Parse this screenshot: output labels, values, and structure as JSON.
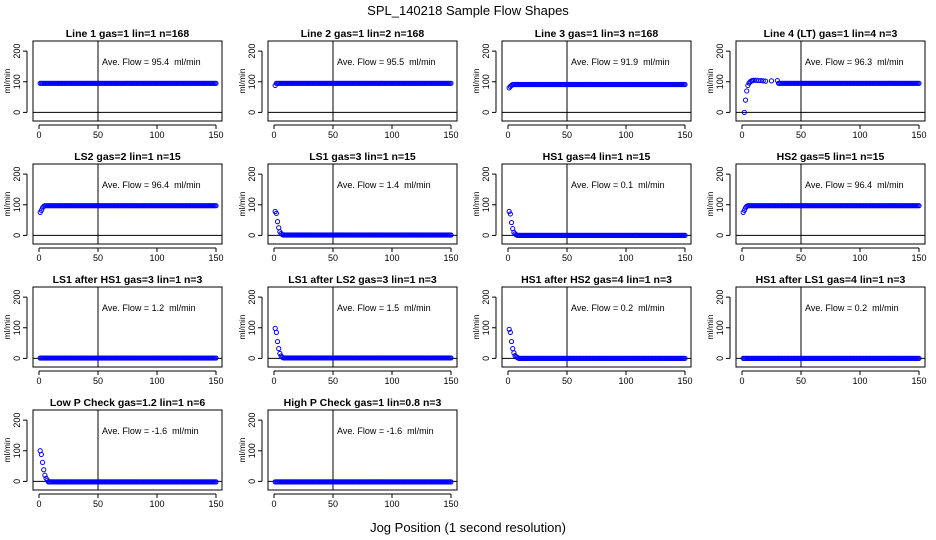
{
  "title": "SPL_140218  Sample Flow Shapes",
  "xlabel": "Jog Position (1 second resolution)",
  "colors": {
    "points": "#0000ff",
    "axes": "#000000",
    "background": "#ffffff"
  },
  "chart_data": [
    {
      "type": "scatter",
      "title": "Line 1 gas=1 lin=1 n=168",
      "ylabel": "ml/min",
      "flow_text": "Ave. Flow = 95.4  ml/min",
      "shape": "flat",
      "plateau": 95,
      "xlim": [
        0,
        150
      ],
      "ylim": [
        -15,
        220
      ],
      "xticks": [
        0,
        50,
        100,
        150
      ],
      "yticks": [
        0,
        100,
        200
      ],
      "vline_x": 50,
      "hline_y": 0,
      "points": []
    },
    {
      "type": "scatter",
      "title": "Line 2 gas=1 lin=2 n=168",
      "ylabel": "ml/min",
      "flow_text": "Ave. Flow = 95.5  ml/min",
      "shape": "flat",
      "plateau": 95,
      "xlim": [
        0,
        150
      ],
      "ylim": [
        -15,
        220
      ],
      "xticks": [
        0,
        50,
        100,
        150
      ],
      "yticks": [
        0,
        100,
        200
      ],
      "vline_x": 50,
      "hline_y": 0,
      "points": [
        [
          1,
          88
        ]
      ]
    },
    {
      "type": "scatter",
      "title": "Line 3 gas=1 lin=3 n=168",
      "ylabel": "ml/min",
      "flow_text": "Ave. Flow = 91.9  ml/min",
      "shape": "flat",
      "plateau": 91,
      "xlim": [
        0,
        150
      ],
      "ylim": [
        -15,
        220
      ],
      "xticks": [
        0,
        50,
        100,
        150
      ],
      "yticks": [
        0,
        100,
        200
      ],
      "vline_x": 50,
      "hline_y": 0,
      "points": [
        [
          1,
          80
        ],
        [
          2,
          85
        ],
        [
          3,
          88
        ]
      ]
    },
    {
      "type": "scatter",
      "title": "Line 4 (LT) gas=1 lin=4 n=3",
      "ylabel": "ml/min",
      "flow_text": "Ave. Flow = 96.3  ml/min",
      "shape": "flat",
      "plateau": 95,
      "xlim": [
        0,
        150
      ],
      "ylim": [
        -15,
        220
      ],
      "xticks": [
        0,
        50,
        100,
        150
      ],
      "yticks": [
        0,
        100,
        200
      ],
      "vline_x": 50,
      "hline_y": 0,
      "points": [
        [
          2,
          0
        ],
        [
          3,
          40
        ],
        [
          4,
          70
        ],
        [
          5,
          88
        ],
        [
          6,
          96
        ],
        [
          7,
          100
        ],
        [
          8,
          103
        ],
        [
          9,
          104
        ],
        [
          10,
          105
        ],
        [
          12,
          105
        ],
        [
          14,
          104
        ],
        [
          16,
          104
        ],
        [
          18,
          103
        ],
        [
          20,
          102
        ],
        [
          25,
          103
        ],
        [
          30,
          104
        ]
      ]
    },
    {
      "type": "scatter",
      "title": "LS2 gas=2 lin=1 n=15",
      "ylabel": "ml/min",
      "flow_text": "Ave. Flow = 96.4  ml/min",
      "shape": "flat",
      "plateau": 97,
      "xlim": [
        0,
        150
      ],
      "ylim": [
        -15,
        220
      ],
      "xticks": [
        0,
        50,
        100,
        150
      ],
      "yticks": [
        0,
        100,
        200
      ],
      "vline_x": 50,
      "hline_y": 0,
      "points": [
        [
          1,
          75
        ],
        [
          2,
          82
        ],
        [
          3,
          90
        ],
        [
          4,
          95
        ]
      ]
    },
    {
      "type": "scatter",
      "title": "LS1 gas=3 lin=1 n=15",
      "ylabel": "ml/min",
      "flow_text": "Ave. Flow = 1.4  ml/min",
      "shape": "decay",
      "plateau": 1.4,
      "xlim": [
        0,
        150
      ],
      "ylim": [
        -15,
        220
      ],
      "xticks": [
        0,
        50,
        100,
        150
      ],
      "yticks": [
        0,
        100,
        200
      ],
      "vline_x": 50,
      "hline_y": 0,
      "points": [
        [
          1,
          78
        ],
        [
          2,
          72
        ],
        [
          3,
          45
        ],
        [
          4,
          25
        ],
        [
          5,
          12
        ],
        [
          6,
          6
        ],
        [
          7,
          3
        ]
      ]
    },
    {
      "type": "scatter",
      "title": "HS1 gas=4 lin=1 n=15",
      "ylabel": "ml/min",
      "flow_text": "Ave. Flow = 0.1  ml/min",
      "shape": "decay",
      "plateau": 0.1,
      "xlim": [
        0,
        150
      ],
      "ylim": [
        -15,
        220
      ],
      "xticks": [
        0,
        50,
        100,
        150
      ],
      "yticks": [
        0,
        100,
        200
      ],
      "vline_x": 50,
      "hline_y": 0,
      "points": [
        [
          1,
          78
        ],
        [
          2,
          70
        ],
        [
          3,
          42
        ],
        [
          4,
          22
        ],
        [
          5,
          10
        ],
        [
          6,
          5
        ],
        [
          7,
          2
        ]
      ]
    },
    {
      "type": "scatter",
      "title": "HS2 gas=5 lin=1 n=15",
      "ylabel": "ml/min",
      "flow_text": "Ave. Flow = 96.4  ml/min",
      "shape": "flat",
      "plateau": 97,
      "xlim": [
        0,
        150
      ],
      "ylim": [
        -15,
        220
      ],
      "xticks": [
        0,
        50,
        100,
        150
      ],
      "yticks": [
        0,
        100,
        200
      ],
      "vline_x": 50,
      "hline_y": 0,
      "points": [
        [
          1,
          75
        ],
        [
          2,
          82
        ],
        [
          3,
          90
        ],
        [
          4,
          95
        ]
      ]
    },
    {
      "type": "scatter",
      "title": "LS1 after HS1 gas=3 lin=1 n=3",
      "ylabel": "ml/min",
      "flow_text": "Ave. Flow = 1.2  ml/min",
      "shape": "flat",
      "plateau": 1.2,
      "xlim": [
        0,
        150
      ],
      "ylim": [
        -15,
        220
      ],
      "xticks": [
        0,
        50,
        100,
        150
      ],
      "yticks": [
        0,
        100,
        200
      ],
      "vline_x": 50,
      "hline_y": 0,
      "points": []
    },
    {
      "type": "scatter",
      "title": "LS1 after LS2 gas=3 lin=1 n=3",
      "ylabel": "ml/min",
      "flow_text": "Ave. Flow = 1.5  ml/min",
      "shape": "decay",
      "plateau": 1.5,
      "xlim": [
        0,
        150
      ],
      "ylim": [
        -15,
        220
      ],
      "xticks": [
        0,
        50,
        100,
        150
      ],
      "yticks": [
        0,
        100,
        200
      ],
      "vline_x": 50,
      "hline_y": 0,
      "points": [
        [
          1,
          98
        ],
        [
          2,
          85
        ],
        [
          3,
          55
        ],
        [
          4,
          32
        ],
        [
          5,
          16
        ],
        [
          6,
          8
        ],
        [
          7,
          4
        ]
      ]
    },
    {
      "type": "scatter",
      "title": "HS1 after HS2 gas=4 lin=1 n=3",
      "ylabel": "ml/min",
      "flow_text": "Ave. Flow = 0.2  ml/min",
      "shape": "decay",
      "plateau": 0.2,
      "xlim": [
        0,
        150
      ],
      "ylim": [
        -15,
        220
      ],
      "xticks": [
        0,
        50,
        100,
        150
      ],
      "yticks": [
        0,
        100,
        200
      ],
      "vline_x": 50,
      "hline_y": 0,
      "points": [
        [
          1,
          95
        ],
        [
          2,
          85
        ],
        [
          3,
          55
        ],
        [
          4,
          32
        ],
        [
          5,
          18
        ],
        [
          6,
          9
        ],
        [
          7,
          5
        ],
        [
          8,
          3
        ]
      ]
    },
    {
      "type": "scatter",
      "title": "HS1 after LS1 gas=4 lin=1 n=3",
      "ylabel": "ml/min",
      "flow_text": "Ave. Flow = 0.2  ml/min",
      "shape": "flat",
      "plateau": 0.2,
      "xlim": [
        0,
        150
      ],
      "ylim": [
        -15,
        220
      ],
      "xticks": [
        0,
        50,
        100,
        150
      ],
      "yticks": [
        0,
        100,
        200
      ],
      "vline_x": 50,
      "hline_y": 0,
      "points": []
    },
    {
      "type": "scatter",
      "title": "Low P Check gas=1.2 lin=1 n=6",
      "ylabel": "ml/min",
      "flow_text": "Ave. Flow = -1.6  ml/min",
      "shape": "decay",
      "plateau": -1.6,
      "xlim": [
        0,
        150
      ],
      "ylim": [
        -15,
        220
      ],
      "xticks": [
        0,
        50,
        100,
        150
      ],
      "yticks": [
        0,
        100,
        200
      ],
      "vline_x": 50,
      "hline_y": 0,
      "points": [
        [
          1,
          100
        ],
        [
          2,
          88
        ],
        [
          3,
          62
        ],
        [
          4,
          38
        ],
        [
          5,
          20
        ],
        [
          6,
          10
        ],
        [
          7,
          4
        ]
      ]
    },
    {
      "type": "scatter",
      "title": "High P Check gas=1 lin=0.8 n=3",
      "ylabel": "ml/min",
      "flow_text": "Ave. Flow = -1.6  ml/min",
      "shape": "flat",
      "plateau": -1.6,
      "xlim": [
        0,
        150
      ],
      "ylim": [
        -15,
        220
      ],
      "xticks": [
        0,
        50,
        100,
        150
      ],
      "yticks": [
        0,
        100,
        200
      ],
      "vline_x": 50,
      "hline_y": 0,
      "points": []
    }
  ]
}
